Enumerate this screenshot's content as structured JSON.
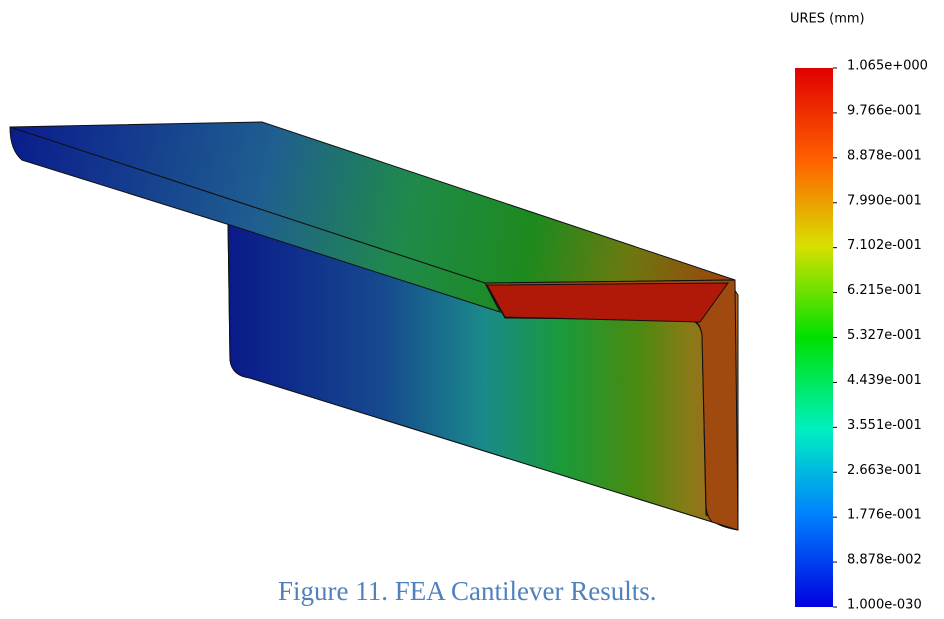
{
  "legend": {
    "title": "URES (mm)",
    "ticks": [
      "1.065e+000",
      "9.766e-001",
      "8.878e-001",
      "7.990e-001",
      "7.102e-001",
      "6.215e-001",
      "5.327e-001",
      "4.439e-001",
      "3.551e-001",
      "2.663e-001",
      "1.776e-001",
      "8.878e-002",
      "1.000e-030"
    ]
  },
  "caption": "Figure 11. FEA Cantilever Results."
}
